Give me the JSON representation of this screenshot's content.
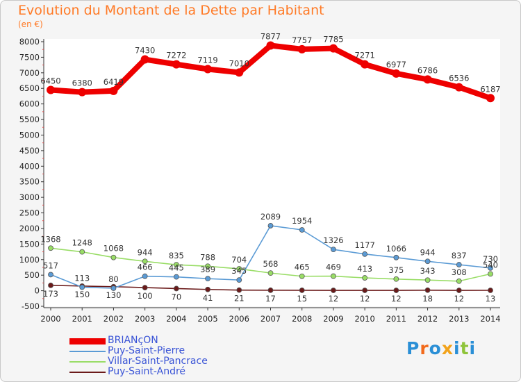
{
  "chart_data": {
    "type": "line",
    "title": "Evolution du Montant de la Dette par Habitant",
    "subtitle": "(en €)",
    "x": [
      "2000",
      "2001",
      "2002",
      "2003",
      "2004",
      "2005",
      "2006",
      "2007",
      "2008",
      "2009",
      "2010",
      "2011",
      "2012",
      "2013",
      "2014"
    ],
    "ylim": [
      -500,
      8000
    ],
    "yticks": [
      -500,
      0,
      500,
      1000,
      1500,
      2000,
      2500,
      3000,
      3500,
      4000,
      4500,
      5000,
      5500,
      6000,
      6500,
      7000,
      7500,
      8000
    ],
    "grid": false,
    "legend_position": "bottom-left",
    "series": [
      {
        "name": "BRIANçON",
        "color": "#ee0000",
        "values": [
          6450,
          6380,
          6419,
          7430,
          7272,
          7119,
          7010,
          7877,
          7757,
          7785,
          7271,
          6977,
          6786,
          6536,
          6187
        ]
      },
      {
        "name": "Puy-Saint-Pierre",
        "color": "#5b9bd5",
        "values": [
          517,
          113,
          80,
          466,
          445,
          389,
          345,
          2089,
          1954,
          1326,
          1177,
          1066,
          944,
          837,
          730
        ]
      },
      {
        "name": "Villar-Saint-Pancrace",
        "color": "#99dd66",
        "values": [
          1368,
          1248,
          1068,
          944,
          835,
          788,
          704,
          568,
          465,
          469,
          413,
          375,
          343,
          308,
          540
        ]
      },
      {
        "name": "Puy-Saint-André",
        "color": "#6b1a1a",
        "values": [
          173,
          150,
          130,
          100,
          70,
          41,
          21,
          17,
          15,
          12,
          12,
          12,
          18,
          12,
          13
        ]
      }
    ]
  },
  "logo": {
    "text": "Proxiti",
    "letters": [
      "P",
      "r",
      "o",
      "x",
      "i",
      "t",
      "i"
    ],
    "colors": [
      "#2a8fd6",
      "#f26a1b",
      "#2a8fd6",
      "#f2a31b",
      "#2a8fd6",
      "#8fc43a",
      "#2a8fd6"
    ]
  }
}
